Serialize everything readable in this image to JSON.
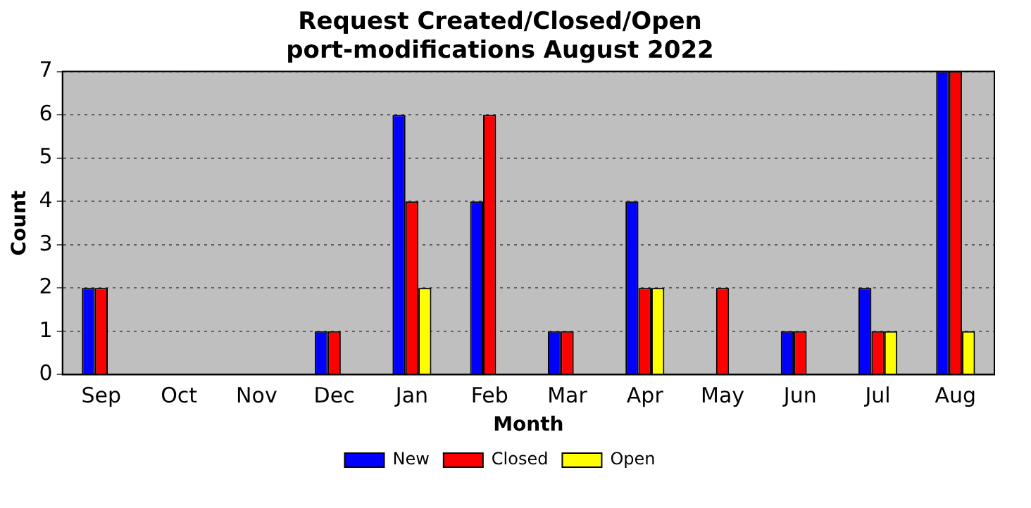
{
  "chart_data": {
    "type": "bar",
    "title": "Request Created/Closed/Open",
    "subtitle": "port-modifications August 2022",
    "xlabel": "Month",
    "ylabel": "Count",
    "categories": [
      "Sep",
      "Oct",
      "Nov",
      "Dec",
      "Jan",
      "Feb",
      "Mar",
      "Apr",
      "May",
      "Jun",
      "Jul",
      "Aug"
    ],
    "series": [
      {
        "name": "New",
        "color": "#0000ff",
        "values": [
          2,
          0,
          0,
          1,
          6,
          4,
          1,
          4,
          0,
          1,
          2,
          7
        ]
      },
      {
        "name": "Closed",
        "color": "#ff0000",
        "values": [
          2,
          0,
          0,
          1,
          4,
          6,
          1,
          2,
          2,
          1,
          1,
          7
        ]
      },
      {
        "name": "Open",
        "color": "#ffff00",
        "values": [
          0,
          0,
          0,
          0,
          2,
          0,
          0,
          2,
          0,
          0,
          1,
          1
        ]
      }
    ],
    "ylim": [
      0,
      7
    ],
    "yticks": [
      0,
      1,
      2,
      3,
      4,
      5,
      6,
      7
    ],
    "grid": "y",
    "line_style": "dotted",
    "legend": "bottom"
  }
}
